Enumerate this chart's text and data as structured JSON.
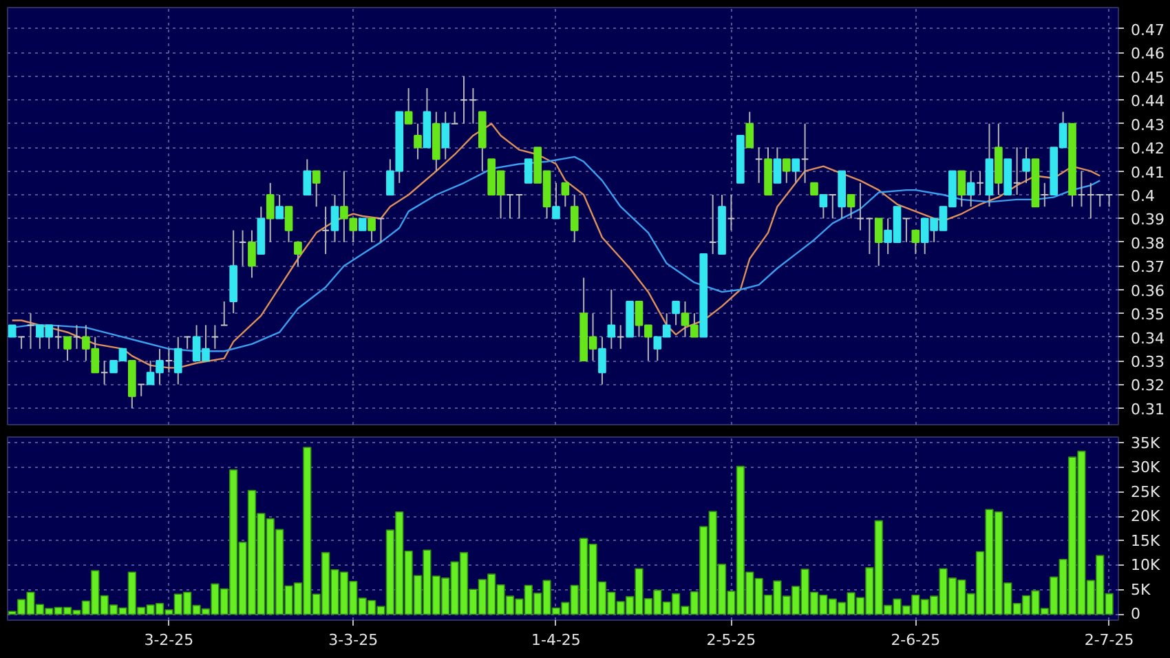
{
  "chart_data": [
    {
      "type": "candlestick",
      "categories": [
        null,
        null,
        null,
        null,
        null,
        null,
        null,
        null,
        null,
        null,
        null,
        null,
        null,
        null,
        null,
        null,
        null,
        null,
        null,
        null,
        null,
        null,
        null,
        null,
        null,
        null,
        null,
        null,
        null,
        null,
        null,
        null,
        null,
        null,
        null,
        null,
        null,
        null,
        null,
        null,
        null,
        null,
        null,
        null,
        null,
        null,
        null,
        null,
        null,
        null,
        null,
        null,
        null,
        null,
        null,
        null,
        null,
        null,
        null,
        null,
        null,
        null,
        null,
        null,
        null,
        null,
        null,
        null,
        null,
        null,
        null,
        null,
        null,
        null,
        null,
        null,
        null,
        null,
        null,
        null,
        null,
        null,
        null,
        null,
        null,
        null,
        null,
        null,
        null,
        null,
        null,
        null,
        null,
        null,
        null,
        null,
        null,
        null,
        null,
        null,
        null,
        null,
        null,
        null,
        null,
        null,
        null,
        null,
        null,
        null,
        null,
        null,
        null,
        null,
        null,
        null,
        null,
        null,
        null,
        null
      ],
      "ohlc": [
        [
          0.34,
          0.345,
          0.34,
          0.345
        ],
        [
          0.34,
          0.34,
          0.335,
          0.34
        ],
        [
          0.345,
          0.35,
          0.335,
          0.345
        ],
        [
          0.34,
          0.345,
          0.335,
          0.345
        ],
        [
          0.34,
          0.345,
          0.335,
          0.345
        ],
        [
          0.34,
          0.345,
          0.335,
          0.34
        ],
        [
          0.34,
          0.34,
          0.33,
          0.335
        ],
        [
          0.34,
          0.345,
          0.335,
          0.34
        ],
        [
          0.34,
          0.345,
          0.33,
          0.335
        ],
        [
          0.335,
          0.34,
          0.325,
          0.325
        ],
        [
          0.325,
          0.33,
          0.32,
          0.325
        ],
        [
          0.325,
          0.33,
          0.325,
          0.33
        ],
        [
          0.33,
          0.335,
          0.33,
          0.335
        ],
        [
          0.33,
          0.33,
          0.31,
          0.315
        ],
        [
          0.32,
          0.32,
          0.315,
          0.32
        ],
        [
          0.32,
          0.33,
          0.32,
          0.325
        ],
        [
          0.325,
          0.335,
          0.32,
          0.33
        ],
        [
          0.33,
          0.335,
          0.325,
          0.33
        ],
        [
          0.325,
          0.34,
          0.32,
          0.335
        ],
        [
          0.34,
          0.34,
          0.335,
          0.34
        ],
        [
          0.33,
          0.345,
          0.33,
          0.34
        ],
        [
          0.33,
          0.345,
          0.33,
          0.335
        ],
        [
          0.34,
          0.345,
          0.335,
          0.34
        ],
        [
          0.345,
          0.355,
          0.345,
          0.345
        ],
        [
          0.355,
          0.385,
          0.35,
          0.37
        ],
        [
          0.38,
          0.385,
          0.37,
          0.38
        ],
        [
          0.38,
          0.385,
          0.365,
          0.37
        ],
        [
          0.375,
          0.395,
          0.375,
          0.39
        ],
        [
          0.4,
          0.405,
          0.38,
          0.39
        ],
        [
          0.39,
          0.4,
          0.39,
          0.395
        ],
        [
          0.395,
          0.395,
          0.38,
          0.385
        ],
        [
          0.38,
          0.38,
          0.37,
          0.375
        ],
        [
          0.4,
          0.415,
          0.4,
          0.41
        ],
        [
          0.41,
          0.41,
          0.395,
          0.405
        ],
        [
          0.385,
          0.395,
          0.375,
          0.385
        ],
        [
          0.385,
          0.4,
          0.38,
          0.395
        ],
        [
          0.395,
          0.41,
          0.38,
          0.39
        ],
        [
          0.39,
          0.39,
          0.38,
          0.385
        ],
        [
          0.385,
          0.39,
          0.385,
          0.39
        ],
        [
          0.39,
          0.39,
          0.38,
          0.385
        ],
        [
          0.39,
          0.39,
          0.38,
          0.39
        ],
        [
          0.4,
          0.415,
          0.4,
          0.41
        ],
        [
          0.41,
          0.435,
          0.405,
          0.435
        ],
        [
          0.435,
          0.445,
          0.43,
          0.43
        ],
        [
          0.425,
          0.43,
          0.415,
          0.42
        ],
        [
          0.42,
          0.445,
          0.42,
          0.435
        ],
        [
          0.43,
          0.435,
          0.41,
          0.415
        ],
        [
          0.42,
          0.435,
          0.415,
          0.43
        ],
        [
          0.43,
          0.435,
          0.43,
          0.43
        ],
        [
          0.44,
          0.45,
          0.43,
          0.44
        ],
        [
          0.44,
          0.445,
          0.43,
          0.44
        ],
        [
          0.435,
          0.435,
          0.41,
          0.42
        ],
        [
          0.415,
          0.415,
          0.4,
          0.4
        ],
        [
          0.41,
          0.41,
          0.39,
          0.4
        ],
        [
          0.4,
          0.4,
          0.39,
          0.4
        ],
        [
          0.4,
          0.4,
          0.39,
          0.4
        ],
        [
          0.405,
          0.415,
          0.405,
          0.415
        ],
        [
          0.42,
          0.42,
          0.405,
          0.405
        ],
        [
          0.41,
          0.41,
          0.39,
          0.395
        ],
        [
          0.39,
          0.405,
          0.39,
          0.395
        ],
        [
          0.405,
          0.405,
          0.395,
          0.4
        ],
        [
          0.395,
          0.4,
          0.38,
          0.385
        ],
        [
          0.35,
          0.365,
          0.33,
          0.33
        ],
        [
          0.34,
          0.35,
          0.33,
          0.335
        ],
        [
          0.325,
          0.34,
          0.32,
          0.335
        ],
        [
          0.34,
          0.36,
          0.335,
          0.345
        ],
        [
          0.34,
          0.345,
          0.335,
          0.34
        ],
        [
          0.34,
          0.355,
          0.34,
          0.355
        ],
        [
          0.355,
          0.355,
          0.34,
          0.345
        ],
        [
          0.345,
          0.345,
          0.33,
          0.34
        ],
        [
          0.335,
          0.34,
          0.33,
          0.34
        ],
        [
          0.34,
          0.35,
          0.34,
          0.345
        ],
        [
          0.35,
          0.355,
          0.345,
          0.355
        ],
        [
          0.35,
          0.355,
          0.34,
          0.345
        ],
        [
          0.345,
          0.35,
          0.34,
          0.34
        ],
        [
          0.34,
          0.375,
          0.34,
          0.375
        ],
        [
          0.38,
          0.4,
          0.375,
          0.38
        ],
        [
          0.375,
          0.4,
          0.375,
          0.395
        ],
        [
          0.39,
          0.4,
          0.385,
          0.39
        ],
        [
          0.405,
          0.425,
          0.405,
          0.425
        ],
        [
          0.43,
          0.435,
          0.42,
          0.42
        ],
        [
          0.415,
          0.42,
          0.405,
          0.415
        ],
        [
          0.415,
          0.42,
          0.4,
          0.4
        ],
        [
          0.405,
          0.42,
          0.405,
          0.415
        ],
        [
          0.415,
          0.415,
          0.405,
          0.41
        ],
        [
          0.41,
          0.415,
          0.405,
          0.415
        ],
        [
          0.415,
          0.43,
          0.405,
          0.415
        ],
        [
          0.405,
          0.405,
          0.4,
          0.4
        ],
        [
          0.395,
          0.4,
          0.39,
          0.4
        ],
        [
          0.4,
          0.4,
          0.39,
          0.4
        ],
        [
          0.395,
          0.41,
          0.39,
          0.41
        ],
        [
          0.4,
          0.4,
          0.39,
          0.395
        ],
        [
          0.39,
          0.405,
          0.385,
          0.39
        ],
        [
          0.39,
          0.39,
          0.375,
          0.39
        ],
        [
          0.39,
          0.39,
          0.37,
          0.38
        ],
        [
          0.38,
          0.39,
          0.375,
          0.385
        ],
        [
          0.38,
          0.395,
          0.38,
          0.395
        ],
        [
          0.39,
          0.39,
          0.38,
          0.39
        ],
        [
          0.385,
          0.385,
          0.375,
          0.38
        ],
        [
          0.38,
          0.39,
          0.375,
          0.39
        ],
        [
          0.385,
          0.39,
          0.38,
          0.39
        ],
        [
          0.385,
          0.395,
          0.385,
          0.395
        ],
        [
          0.395,
          0.41,
          0.395,
          0.41
        ],
        [
          0.41,
          0.41,
          0.395,
          0.4
        ],
        [
          0.4,
          0.41,
          0.395,
          0.405
        ],
        [
          0.405,
          0.41,
          0.4,
          0.405
        ],
        [
          0.4,
          0.43,
          0.395,
          0.415
        ],
        [
          0.42,
          0.43,
          0.4,
          0.405
        ],
        [
          0.4,
          0.415,
          0.4,
          0.415
        ],
        [
          0.405,
          0.42,
          0.4,
          0.405
        ],
        [
          0.41,
          0.42,
          0.405,
          0.415
        ],
        [
          0.415,
          0.415,
          0.395,
          0.395
        ],
        [
          0.4,
          0.405,
          0.395,
          0.4
        ],
        [
          0.4,
          0.42,
          0.4,
          0.42
        ],
        [
          0.42,
          0.435,
          0.42,
          0.43
        ],
        [
          0.43,
          0.43,
          0.395,
          0.4
        ],
        [
          0.4,
          0.41,
          0.395,
          0.4
        ],
        [
          0.4,
          0.405,
          0.39,
          0.4
        ],
        [
          0.4,
          0.4,
          0.395,
          0.4
        ],
        [
          0.4,
          0.4,
          0.395,
          0.4
        ]
      ],
      "colors": [
        "#33e6f0",
        "#c8c8c8",
        "#c8c8c8",
        "#33e6f0",
        "#33e6f0",
        "#c8c8c8",
        "#66e61a",
        "#c8c8c8",
        "#66e61a",
        "#66e61a",
        "#c8c8c8",
        "#33e6f0",
        "#33e6f0",
        "#66e61a",
        "#c8c8c8",
        "#33e6f0",
        "#33e6f0",
        "#c8c8c8",
        "#33e6f0",
        "#c8c8c8",
        "#33e6f0",
        "#33e6f0",
        "#c8c8c8",
        "#c8c8c8",
        "#33e6f0",
        "#c8c8c8",
        "#66e61a",
        "#33e6f0",
        "#66e61a",
        "#33e6f0",
        "#66e61a",
        "#66e61a",
        "#33e6f0",
        "#66e61a",
        "#c8c8c8",
        "#33e6f0",
        "#66e61a",
        "#66e61a",
        "#33e6f0",
        "#66e61a",
        "#c8c8c8",
        "#33e6f0",
        "#33e6f0",
        "#66e61a",
        "#66e61a",
        "#33e6f0",
        "#66e61a",
        "#33e6f0",
        "#c8c8c8",
        "#c8c8c8",
        "#c8c8c8",
        "#66e61a",
        "#66e61a",
        "#66e61a",
        "#c8c8c8",
        "#c8c8c8",
        "#33e6f0",
        "#66e61a",
        "#66e61a",
        "#33e6f0",
        "#66e61a",
        "#66e61a",
        "#66e61a",
        "#66e61a",
        "#33e6f0",
        "#33e6f0",
        "#c8c8c8",
        "#33e6f0",
        "#66e61a",
        "#66e61a",
        "#33e6f0",
        "#33e6f0",
        "#33e6f0",
        "#66e61a",
        "#66e61a",
        "#33e6f0",
        "#c8c8c8",
        "#33e6f0",
        "#c8c8c8",
        "#33e6f0",
        "#66e61a",
        "#c8c8c8",
        "#66e61a",
        "#33e6f0",
        "#66e61a",
        "#33e6f0",
        "#c8c8c8",
        "#66e61a",
        "#33e6f0",
        "#c8c8c8",
        "#33e6f0",
        "#66e61a",
        "#c8c8c8",
        "#c8c8c8",
        "#66e61a",
        "#33e6f0",
        "#33e6f0",
        "#c8c8c8",
        "#66e61a",
        "#33e6f0",
        "#33e6f0",
        "#33e6f0",
        "#33e6f0",
        "#66e61a",
        "#33e6f0",
        "#c8c8c8",
        "#33e6f0",
        "#66e61a",
        "#33e6f0",
        "#c8c8c8",
        "#33e6f0",
        "#66e61a",
        "#c8c8c8",
        "#33e6f0",
        "#33e6f0",
        "#66e61a",
        "#c8c8c8",
        "#c8c8c8",
        "#c8c8c8",
        "#c8c8c8"
      ],
      "series": [
        {
          "type": "line",
          "color": "#e0905a",
          "values": [
            0.347,
            0.347,
            null,
            null,
            0.344,
            null,
            0.342,
            null,
            null,
            0.337,
            null,
            null,
            0.335,
            0.332,
            null,
            0.328,
            null,
            0.327,
            0.327,
            null,
            0.329,
            null,
            null,
            0.331,
            0.338,
            null,
            null,
            0.349,
            null,
            0.361,
            null,
            0.373,
            null,
            0.384,
            null,
            0.389,
            null,
            0.392,
            0.391,
            null,
            0.39,
            0.395,
            null,
            0.4,
            null,
            null,
            0.41,
            null,
            0.417,
            null,
            0.425,
            null,
            0.43,
            0.425,
            null,
            0.419,
            null,
            0.417,
            null,
            0.413,
            0.406,
            null,
            0.4,
            null,
            0.382,
            null,
            null,
            0.369,
            null,
            0.359,
            null,
            0.345,
            0.341,
            0.344,
            null,
            0.347,
            null,
            0.353,
            null,
            0.36,
            0.373,
            null,
            0.384,
            0.395,
            null,
            0.405,
            0.41,
            null,
            0.412,
            null,
            0.409,
            null,
            0.406,
            null,
            0.402,
            null,
            0.396,
            null,
            0.393,
            null,
            0.39,
            0.389,
            null,
            0.392,
            null,
            0.396,
            null,
            0.399,
            null,
            0.404,
            null,
            0.408,
            null,
            0.407,
            null,
            0.412,
            null,
            0.41,
            0.408,
            null
          ]
        },
        {
          "type": "line",
          "color": "#3aa0f0",
          "values": [
            0.344,
            null,
            0.345,
            null,
            0.345,
            null,
            null,
            null,
            0.344,
            null,
            null,
            null,
            0.34,
            null,
            0.338,
            null,
            null,
            0.335,
            null,
            null,
            0.334,
            null,
            null,
            0.334,
            null,
            null,
            0.337,
            null,
            null,
            0.342,
            null,
            0.352,
            null,
            null,
            0.361,
            null,
            0.37,
            null,
            0.375,
            null,
            0.38,
            null,
            0.386,
            0.393,
            null,
            null,
            0.4,
            null,
            null,
            0.405,
            null,
            null,
            0.411,
            null,
            null,
            0.413,
            null,
            null,
            0.414,
            null,
            null,
            0.416,
            0.414,
            null,
            0.406,
            null,
            0.395,
            null,
            null,
            0.384,
            null,
            0.371,
            null,
            null,
            0.363,
            null,
            null,
            0.359,
            null,
            0.36,
            null,
            0.362,
            null,
            0.369,
            null,
            0.375,
            null,
            0.381,
            null,
            0.388,
            null,
            null,
            0.394,
            null,
            0.401,
            null,
            null,
            0.402,
            0.402,
            null,
            null,
            0.4,
            null,
            0.398,
            null,
            null,
            0.397,
            null,
            null,
            0.398,
            null,
            0.398,
            null,
            0.399,
            null,
            0.402,
            null,
            0.404,
            0.406,
            null
          ]
        }
      ],
      "ylim": [
        0.303,
        0.479
      ],
      "yticks": [
        0.31,
        0.32,
        0.33,
        0.34,
        0.35,
        0.36,
        0.37,
        0.38,
        0.39,
        0.4,
        0.41,
        0.42,
        0.43,
        0.44,
        0.45,
        0.46,
        0.47
      ],
      "tick_labels": "y",
      "grid": true
    },
    {
      "type": "bar",
      "categories": [
        null,
        null,
        null,
        null,
        null,
        null,
        null,
        null,
        null,
        null,
        null,
        null,
        null,
        null,
        null,
        null,
        null,
        "3-2-25",
        null,
        null,
        null,
        null,
        null,
        null,
        null,
        null,
        null,
        null,
        null,
        null,
        null,
        null,
        null,
        null,
        null,
        null,
        null,
        "3-3-25",
        null,
        null,
        null,
        null,
        null,
        null,
        null,
        null,
        null,
        null,
        null,
        null,
        null,
        null,
        null,
        null,
        null,
        null,
        null,
        null,
        null,
        "1-4-25",
        null,
        null,
        null,
        null,
        null,
        null,
        null,
        null,
        null,
        null,
        null,
        null,
        null,
        null,
        null,
        null,
        null,
        null,
        "2-5-25",
        null,
        null,
        null,
        null,
        null,
        null,
        null,
        null,
        null,
        null,
        null,
        null,
        null,
        null,
        null,
        null,
        null,
        null,
        null,
        "2-6-25",
        null,
        null,
        null,
        null,
        null,
        null,
        null,
        null,
        null,
        null,
        null,
        null,
        null,
        null,
        null,
        null,
        null,
        null,
        null,
        null,
        "2-7-25"
      ],
      "values": [
        600,
        3000,
        4500,
        2000,
        1200,
        1400,
        1400,
        800,
        2700,
        8900,
        3800,
        1900,
        1300,
        8600,
        1400,
        1900,
        2200,
        900,
        4100,
        4500,
        1800,
        1100,
        6200,
        5200,
        29500,
        14700,
        25300,
        20600,
        19500,
        17300,
        5800,
        6400,
        34100,
        4100,
        12600,
        9100,
        8600,
        6700,
        3300,
        2800,
        1600,
        17200,
        20900,
        12900,
        7900,
        13100,
        7800,
        7400,
        10700,
        12600,
        5100,
        7100,
        8200,
        6000,
        3700,
        3100,
        5900,
        4300,
        6900,
        1300,
        2400,
        5900,
        15500,
        14300,
        6600,
        4500,
        2600,
        3600,
        9300,
        3200,
        4900,
        2500,
        4200,
        1600,
        4600,
        17900,
        21000,
        10200,
        4700,
        30200,
        8600,
        7300,
        3900,
        6800,
        3700,
        5700,
        9200,
        4500,
        3900,
        3100,
        2400,
        4400,
        3400,
        9500,
        19100,
        1800,
        3100,
        1700,
        3900,
        3000,
        3700,
        9300,
        7400,
        7000,
        4200,
        12800,
        21400,
        20900,
        6400,
        2200,
        3800,
        4800,
        1200,
        7600,
        11200,
        32100,
        33300,
        6900,
        12000,
        4200
      ],
      "color": "#66ee22",
      "ylim": [
        -1200,
        36200
      ],
      "yticks": [
        0,
        {
          "value": 5000,
          "label": "5K"
        },
        {
          "value": 10000,
          "label": "10K"
        },
        {
          "value": 15000,
          "label": "15K"
        },
        {
          "value": 20000,
          "label": "20K"
        },
        {
          "value": 25000,
          "label": "25K"
        },
        {
          "value": 30000,
          "label": "30K"
        },
        {
          "value": 35000,
          "label": "35K"
        }
      ],
      "grid": true
    }
  ]
}
